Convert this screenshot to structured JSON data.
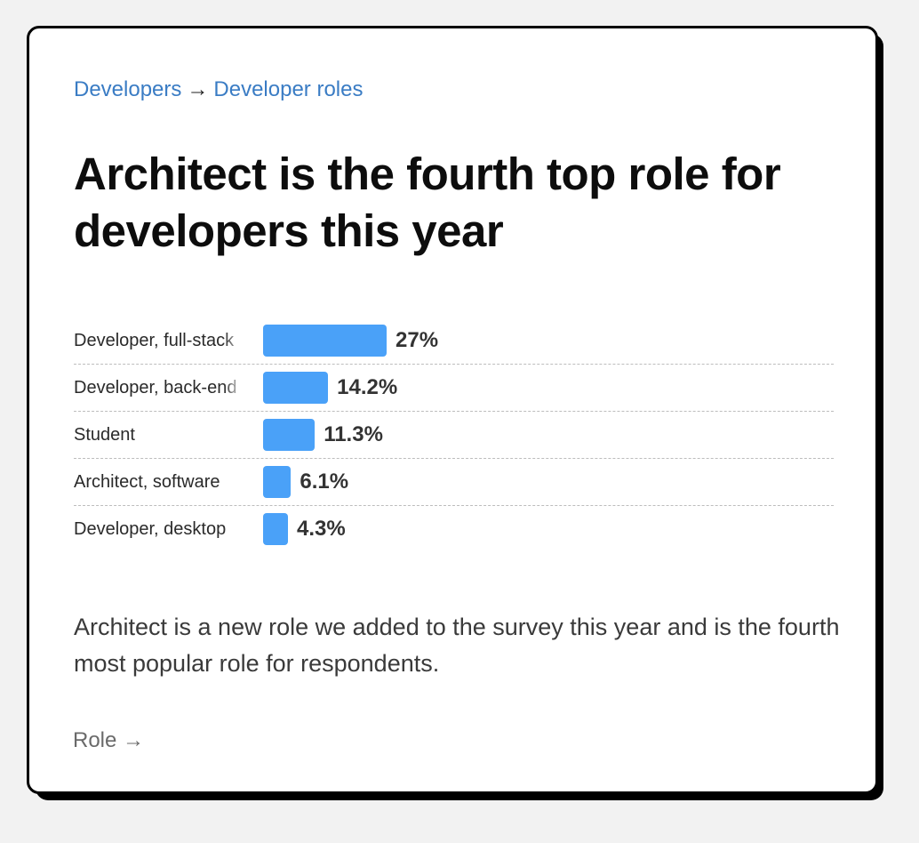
{
  "breadcrumb": {
    "parent": "Developers",
    "separator": "→",
    "current": "Developer roles"
  },
  "title": "Architect is the fourth top role for developers this year",
  "chart_data": {
    "type": "bar",
    "orientation": "horizontal",
    "categories": [
      "Developer, full-stack",
      "Developer, back-end",
      "Student",
      "Architect, software",
      "Developer, desktop"
    ],
    "values": [
      27,
      14.2,
      11.3,
      6.1,
      4.3
    ],
    "value_labels": [
      "27%",
      "14.2%",
      "11.3%",
      "6.1%",
      "4.3%"
    ],
    "unit": "%",
    "xlim": [
      0,
      100
    ],
    "grid": false,
    "legend": "none",
    "bar_color": "#4aa1f8"
  },
  "description": "Architect is a new role we added to the survey this year and is the fourth most popular role for respondents.",
  "footer": {
    "link_label": "Role →"
  }
}
